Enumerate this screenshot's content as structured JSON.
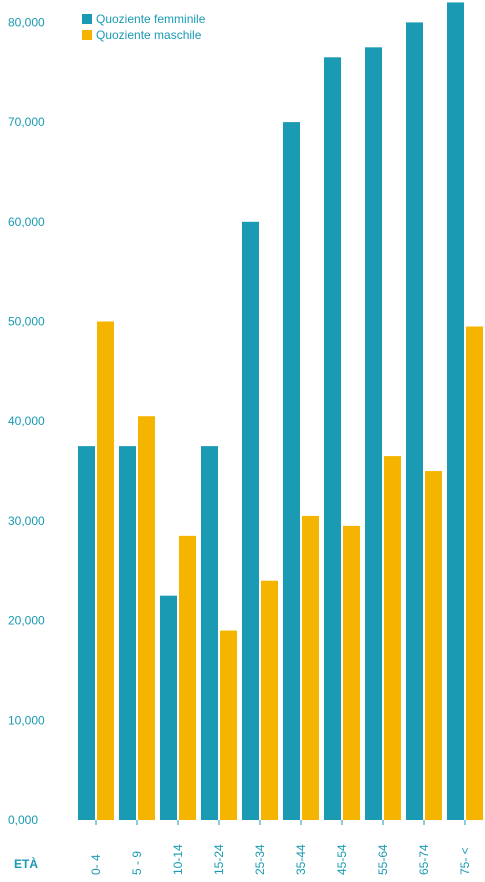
{
  "colors": {
    "female": "#1a9ab3",
    "male": "#f5b400",
    "text": "#1a9ab3"
  },
  "chart_data": {
    "type": "bar",
    "xlabel": "ETÀ",
    "ylabel": "",
    "title": "",
    "ylim": [
      0,
      82
    ],
    "yticks": [
      0,
      10,
      20,
      30,
      40,
      50,
      60,
      70,
      80
    ],
    "ytick_labels": [
      "0,000",
      "10,000",
      "20,000",
      "30,000",
      "40,000",
      "50,000",
      "60,000",
      "70,000",
      "80,000"
    ],
    "categories": [
      "0- 4",
      "5 - 9",
      "10-14",
      "15-24",
      "25-34",
      "35-44",
      "45-54",
      "55-64",
      "65-74",
      "75- <"
    ],
    "legend_position": "top-left",
    "grid": false,
    "series": [
      {
        "name": "Quoziente femminile",
        "color": "#1a9ab3",
        "values": [
          37.5,
          37.5,
          22.5,
          37.5,
          60,
          70,
          76.5,
          77.5,
          80,
          82
        ]
      },
      {
        "name": "Quoziente maschile",
        "color": "#f5b400",
        "values": [
          50,
          40.5,
          28.5,
          19,
          24,
          30.5,
          29.5,
          36.5,
          35,
          49.5
        ]
      }
    ]
  }
}
